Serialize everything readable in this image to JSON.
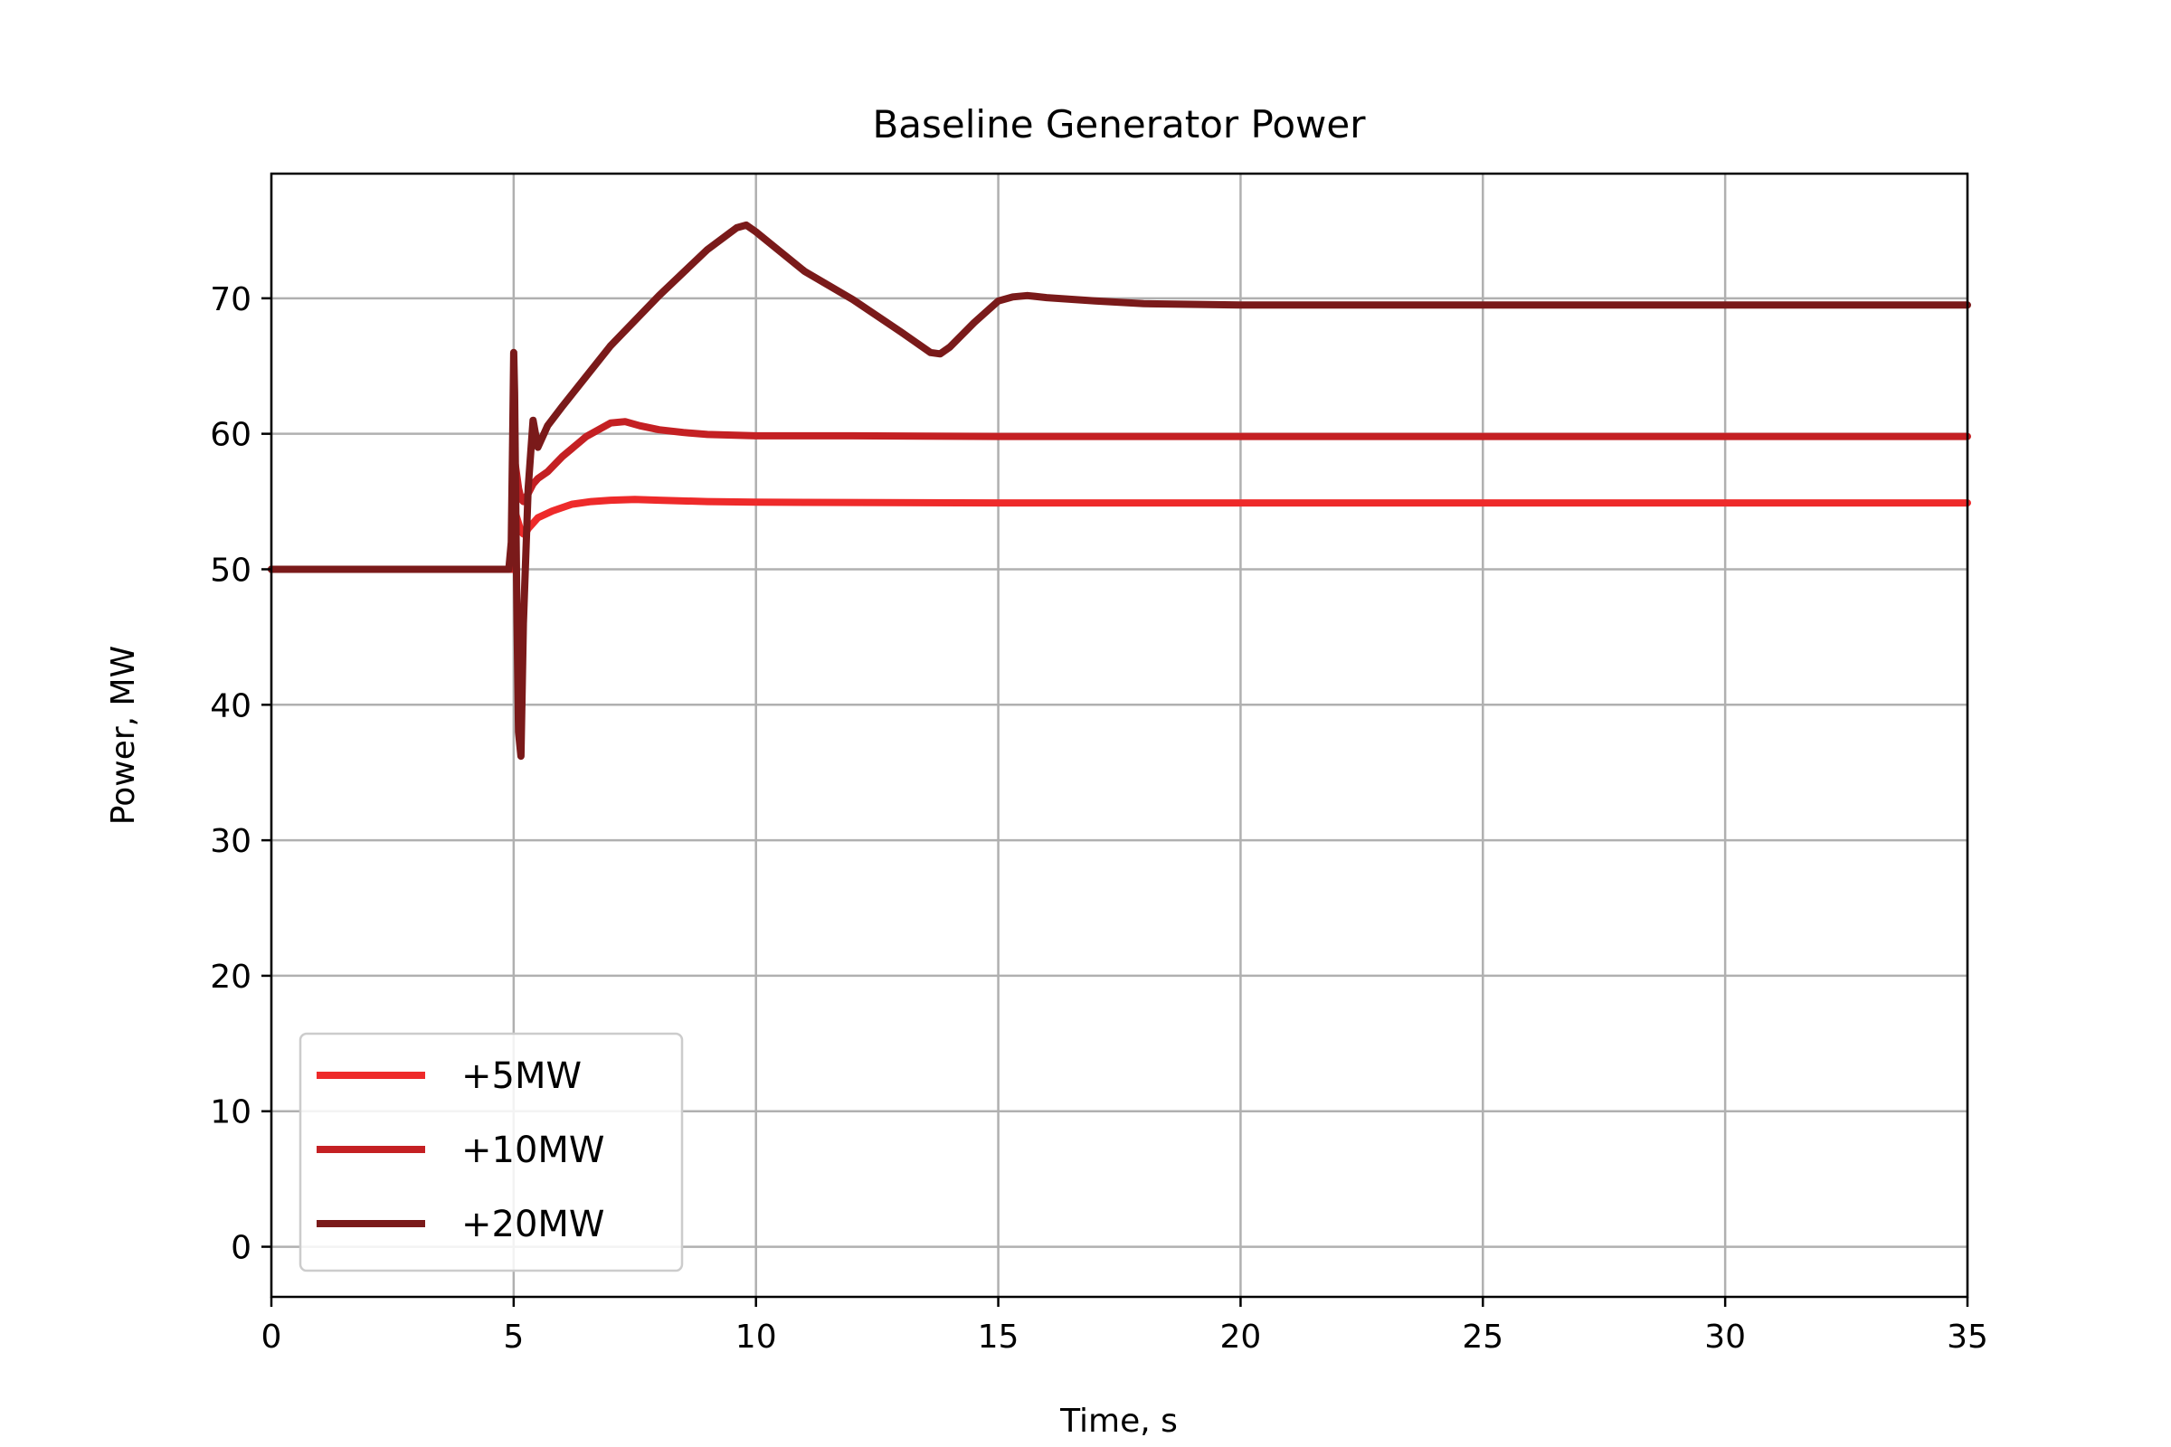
{
  "chart_data": {
    "type": "line",
    "title": "Baseline Generator Power",
    "xlabel": "Time, s",
    "ylabel": "Power, MW",
    "xlim": [
      0,
      35
    ],
    "ylim": [
      -3.7,
      79.2
    ],
    "xticks": [
      0,
      5,
      10,
      15,
      20,
      25,
      30,
      35
    ],
    "yticks": [
      0,
      10,
      20,
      30,
      40,
      50,
      60,
      70
    ],
    "grid": true,
    "legend_position": "lower-left",
    "series": [
      {
        "name": "+5MW",
        "color": "#ee2a2a",
        "x": [
          0,
          4.98,
          5.0,
          5.03,
          5.1,
          5.15,
          5.2,
          5.25,
          5.3,
          5.4,
          5.5,
          5.8,
          6.2,
          6.6,
          7.0,
          7.5,
          8.0,
          9.0,
          10.0,
          15.0,
          20.0,
          25.0,
          30.0,
          35.0
        ],
        "y": [
          50,
          50,
          53.5,
          54.2,
          53.4,
          52.8,
          52.6,
          52.7,
          53.0,
          53.4,
          53.8,
          54.3,
          54.8,
          55.0,
          55.1,
          55.15,
          55.1,
          55.0,
          54.95,
          54.9,
          54.9,
          54.9,
          54.9,
          54.9
        ]
      },
      {
        "name": "+10MW",
        "color": "#c42023",
        "x": [
          0,
          4.98,
          5.0,
          5.03,
          5.1,
          5.15,
          5.2,
          5.3,
          5.4,
          5.5,
          5.7,
          6.0,
          6.5,
          7.0,
          7.3,
          7.6,
          8.0,
          8.5,
          9.0,
          10.0,
          12.0,
          15.0,
          20.0,
          25.0,
          30.0,
          35.0
        ],
        "y": [
          50,
          50,
          56.5,
          57.8,
          56.0,
          55.2,
          55.0,
          55.6,
          56.3,
          56.7,
          57.2,
          58.3,
          59.8,
          60.8,
          60.9,
          60.6,
          60.3,
          60.1,
          59.95,
          59.85,
          59.85,
          59.8,
          59.8,
          59.8,
          59.8,
          59.8
        ]
      },
      {
        "name": "+20MW",
        "color": "#7a1a1a",
        "x": [
          0,
          4.9,
          4.95,
          4.98,
          5.0,
          5.02,
          5.04,
          5.07,
          5.1,
          5.15,
          5.2,
          5.3,
          5.4,
          5.5,
          5.7,
          6.0,
          7.0,
          8.0,
          9.0,
          9.6,
          9.8,
          10.0,
          11.0,
          12.0,
          13.0,
          13.6,
          13.8,
          14.0,
          14.5,
          15.0,
          15.3,
          15.6,
          16.0,
          17.0,
          18.0,
          20.0,
          25.0,
          30.0,
          35.0
        ],
        "y": [
          50,
          50,
          52,
          60,
          66,
          63,
          56,
          46,
          38,
          36.2,
          46,
          56,
          61,
          59,
          60.6,
          62,
          66.5,
          70.2,
          73.6,
          75.2,
          75.4,
          74.9,
          72.0,
          69.9,
          67.5,
          66.0,
          65.9,
          66.4,
          68.2,
          69.8,
          70.1,
          70.2,
          70.05,
          69.8,
          69.6,
          69.5,
          69.5,
          69.5,
          69.5
        ]
      }
    ]
  }
}
